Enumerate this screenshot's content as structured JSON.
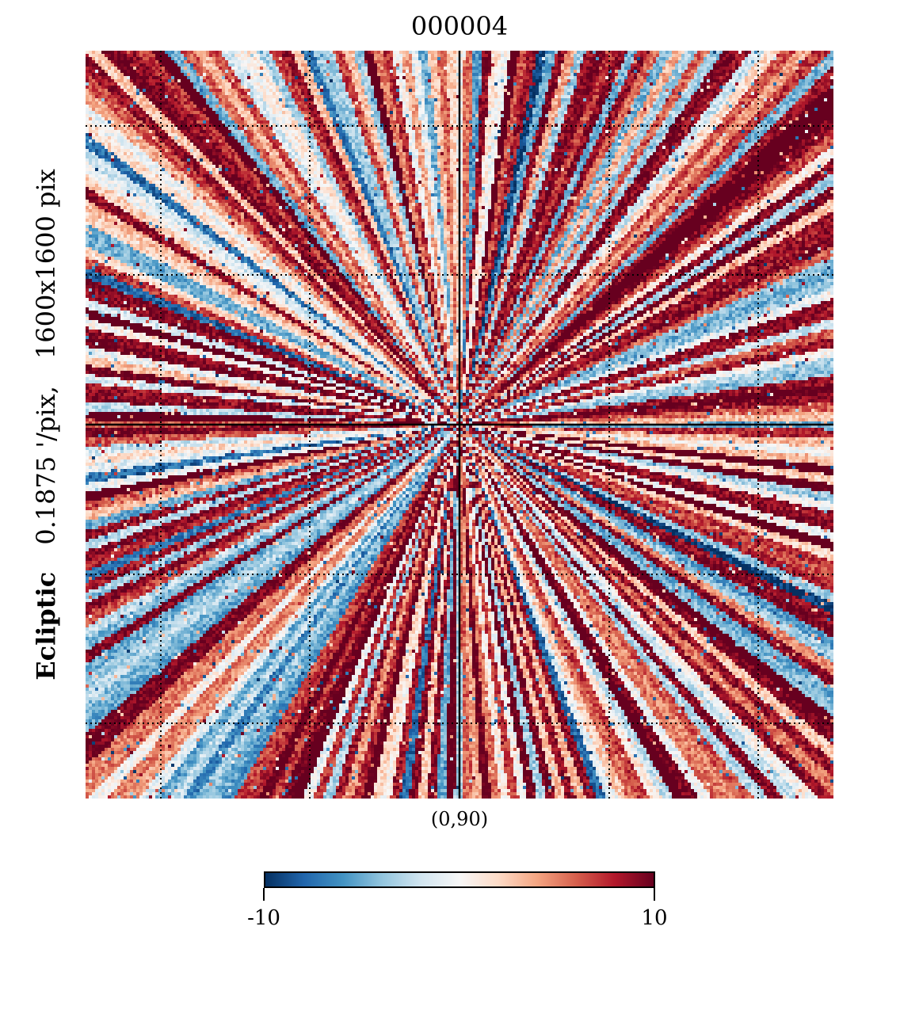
{
  "chart_data": {
    "type": "heatmap",
    "title": "000004",
    "projection": "gnomonic",
    "coord_label": "Ecliptic",
    "resolution_label": "0.1875 '/pix,",
    "size_label": "1600x1600 pix",
    "center_label": "(0,90)",
    "colormap": "RdBu_r",
    "colorbar": {
      "min": -10,
      "max": 10,
      "min_label": "-10",
      "max_label": "10",
      "stops": [
        "#053061",
        "#2166ac",
        "#4393c3",
        "#92c5de",
        "#d1e5f0",
        "#f7f7f7",
        "#fddbc7",
        "#f4a582",
        "#d6604d",
        "#b2182b",
        "#67001f"
      ]
    },
    "graticule": {
      "dotted": true,
      "center_cross": true,
      "divisions": 5
    },
    "pattern": "radial streaks from center, predominantly positive values"
  }
}
